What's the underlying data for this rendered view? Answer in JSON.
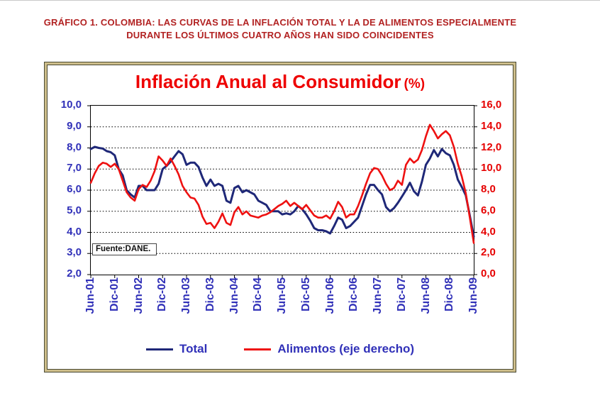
{
  "page": {
    "heading_line1": "GRÁFICO 1. COLOMBIA: LAS CURVAS DE LA INFLACIÓN TOTAL Y LA DE ALIMENTOS ESPECIALMENTE",
    "heading_line2": "DURANTE LOS ÚLTIMOS CUATRO AÑOS HAN SIDO COINCIDENTES"
  },
  "chart": {
    "title_main": "Inflación Anual al Consumidor",
    "title_suffix": "(%)",
    "source_note": "Fuente:DANE.",
    "legend": [
      {
        "label": "Total",
        "color": "#1F2878"
      },
      {
        "label": "Alimentos (eje derecho)",
        "color": "#EE1111"
      }
    ]
  },
  "colors": {
    "heading": "#B22222",
    "title_red": "#EE0000",
    "axis_blue": "#3030B8",
    "axis_red": "#E60000",
    "frame_beige": "#CDBD8A"
  },
  "chart_data": {
    "type": "line",
    "title": "Inflación Anual al Consumidor (%)",
    "grid": "horizontal-dotted",
    "legend_position": "bottom",
    "x_tick_labels": [
      "Jun-01",
      "Dic-01",
      "Jun-02",
      "Dic-02",
      "Jun-03",
      "Dic-03",
      "Jun-04",
      "Dic-04",
      "Jun-05",
      "Dic-05",
      "Jun-06",
      "Dic-06",
      "Jun-07",
      "Dic-07",
      "Jun-08",
      "Dic-08",
      "Jun-09"
    ],
    "x_points_per_tick": 6,
    "left_axis": {
      "min": 2,
      "max": 10,
      "tick_step": 1,
      "tick_labels": [
        "10,0",
        "9,0",
        "8,0",
        "7,0",
        "6,0",
        "5,0",
        "4,0",
        "3,0",
        "2,0"
      ],
      "color": "#3030B8"
    },
    "right_axis": {
      "min": 0,
      "max": 16,
      "tick_step": 2,
      "tick_labels": [
        "16,0",
        "14,0",
        "12,0",
        "10,0",
        "8,0",
        "6,0",
        "4,0",
        "2,0",
        "0,0"
      ],
      "color": "#E60000"
    },
    "series": [
      {
        "name": "Total",
        "axis": "left",
        "color": "#1F2878",
        "width": 3,
        "values": [
          7.95,
          8.05,
          8.0,
          7.97,
          7.85,
          7.8,
          7.65,
          7.0,
          6.7,
          6.0,
          5.8,
          5.65,
          6.2,
          6.2,
          6.0,
          6.0,
          6.0,
          6.3,
          7.0,
          7.15,
          7.35,
          7.6,
          7.85,
          7.7,
          7.2,
          7.3,
          7.3,
          7.1,
          6.6,
          6.2,
          6.5,
          6.2,
          6.3,
          6.2,
          5.5,
          5.4,
          6.1,
          6.2,
          5.9,
          6.0,
          5.9,
          5.8,
          5.5,
          5.4,
          5.3,
          5.0,
          5.0,
          5.0,
          4.85,
          4.9,
          4.85,
          5.0,
          5.25,
          5.1,
          4.85,
          4.55,
          4.2,
          4.1,
          4.1,
          4.05,
          3.95,
          4.3,
          4.7,
          4.6,
          4.2,
          4.3,
          4.5,
          4.7,
          5.25,
          5.8,
          6.25,
          6.25,
          6.0,
          5.8,
          5.2,
          5.0,
          5.15,
          5.4,
          5.7,
          6.0,
          6.35,
          5.95,
          5.75,
          6.4,
          7.2,
          7.5,
          7.9,
          7.6,
          7.95,
          7.75,
          7.65,
          7.2,
          6.5,
          6.15,
          5.75,
          4.8,
          3.8
        ]
      },
      {
        "name": "Alimentos (eje derecho)",
        "axis": "right",
        "color": "#EE1111",
        "width": 2.6,
        "values": [
          8.7,
          9.6,
          10.3,
          10.6,
          10.5,
          10.2,
          10.5,
          10.0,
          8.9,
          7.8,
          7.3,
          7.0,
          8.1,
          8.5,
          8.3,
          8.9,
          9.8,
          11.2,
          10.8,
          10.3,
          11.0,
          10.3,
          9.5,
          8.4,
          7.8,
          7.3,
          7.2,
          6.6,
          5.5,
          4.8,
          4.9,
          4.4,
          5.0,
          5.8,
          4.9,
          4.7,
          5.9,
          6.4,
          5.7,
          6.0,
          5.6,
          5.5,
          5.4,
          5.6,
          5.7,
          5.9,
          6.2,
          6.5,
          6.7,
          7.0,
          6.5,
          6.8,
          6.5,
          6.2,
          6.6,
          6.1,
          5.6,
          5.4,
          5.4,
          5.6,
          5.3,
          6.0,
          6.9,
          6.4,
          5.4,
          5.7,
          5.7,
          6.5,
          7.5,
          8.6,
          9.6,
          10.1,
          10.0,
          9.4,
          8.6,
          8.0,
          8.2,
          8.9,
          8.5,
          10.4,
          11.0,
          10.6,
          10.9,
          11.8,
          13.1,
          14.2,
          13.6,
          12.9,
          13.3,
          13.6,
          13.2,
          12.1,
          10.5,
          9.3,
          7.7,
          5.4,
          3.0
        ]
      }
    ]
  }
}
